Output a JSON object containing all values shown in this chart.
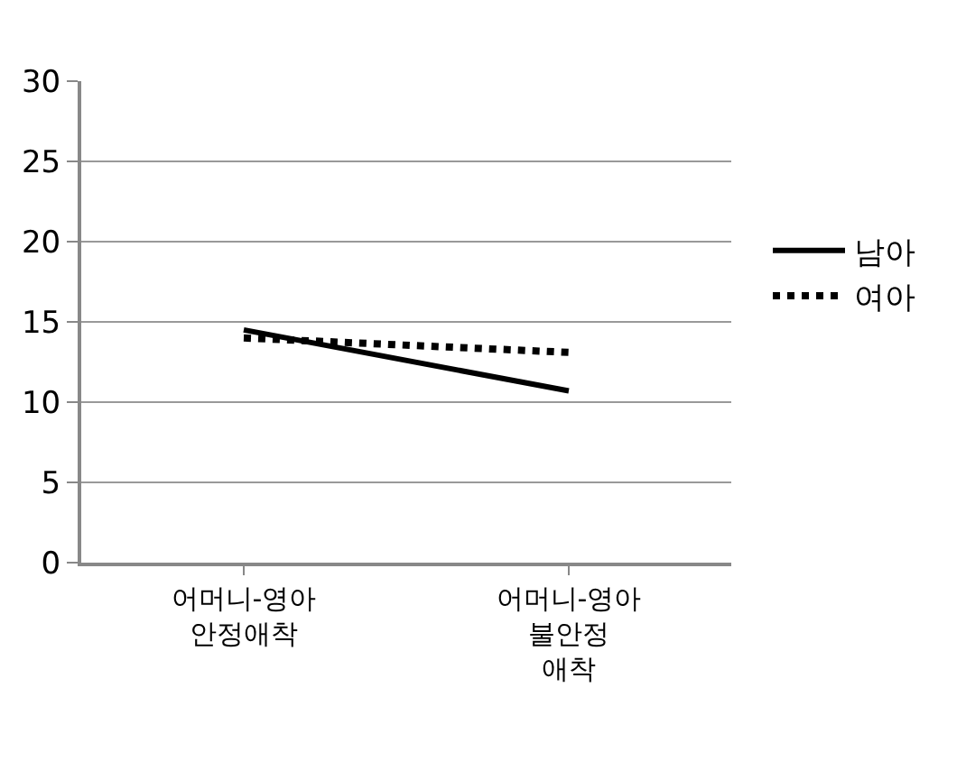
{
  "chart_data": {
    "type": "line",
    "categories": [
      "어머니-영아\n안정애착",
      "어머니-영아\n불안정\n애착"
    ],
    "series": [
      {
        "name": "남아",
        "color": "#000000",
        "values": [
          14.5,
          10.7
        ],
        "line_style": "solid"
      },
      {
        "name": "여아",
        "color": "#000000",
        "values": [
          14.0,
          13.1
        ],
        "line_style": "dotted"
      }
    ],
    "ylim": [
      0,
      30
    ],
    "yticks": [
      0,
      5,
      10,
      15,
      20,
      25,
      30
    ],
    "grid": "y",
    "legend": "right",
    "marker": "none"
  }
}
